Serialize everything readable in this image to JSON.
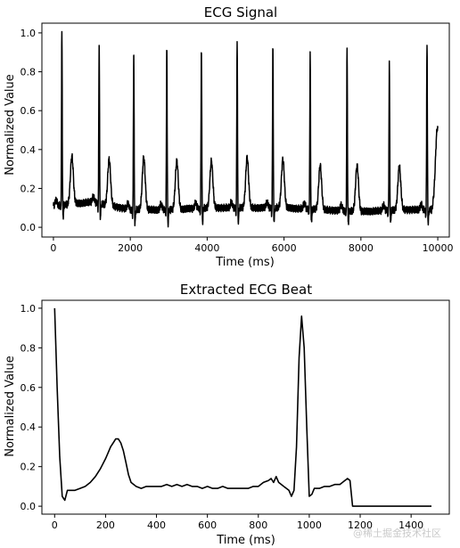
{
  "watermark": "@稀土掘金技术社区",
  "chart_data": [
    {
      "type": "line",
      "title": "ECG Signal",
      "xlabel": "Time (ms)",
      "ylabel": "Normalized Value",
      "xlim": [
        -300,
        10300
      ],
      "ylim": [
        -0.05,
        1.05
      ],
      "xticks": [
        0,
        2000,
        4000,
        6000,
        8000,
        10000
      ],
      "yticks": [
        0.0,
        0.2,
        0.4,
        0.6,
        0.8,
        1.0
      ],
      "xtick_labels": [
        "0",
        "2000",
        "4000",
        "6000",
        "8000",
        "10000"
      ],
      "ytick_labels": [
        "0.0",
        "0.2",
        "0.4",
        "0.6",
        "0.8",
        "1.0"
      ],
      "line_color": "#000000",
      "grid": false,
      "signal_range": [
        0,
        10000
      ],
      "baseline": [
        [
          0,
          0.11
        ],
        [
          1000,
          0.13
        ],
        [
          2000,
          0.09
        ],
        [
          3000,
          0.09
        ],
        [
          4000,
          0.1
        ],
        [
          5000,
          0.1
        ],
        [
          6000,
          0.1
        ],
        [
          7000,
          0.09
        ],
        [
          8000,
          0.08
        ],
        [
          9000,
          0.09
        ],
        [
          10000,
          0.09
        ]
      ],
      "beats": [
        {
          "t": 220,
          "r": 1.0,
          "twave": 0.36
        },
        {
          "t": 1190,
          "r": 0.96,
          "twave": 0.36
        },
        {
          "t": 2090,
          "r": 0.91,
          "twave": 0.36
        },
        {
          "t": 2950,
          "r": 0.94,
          "twave": 0.34
        },
        {
          "t": 3850,
          "r": 0.93,
          "twave": 0.34
        },
        {
          "t": 4780,
          "r": 0.96,
          "twave": 0.36
        },
        {
          "t": 5710,
          "r": 0.95,
          "twave": 0.35
        },
        {
          "t": 6680,
          "r": 0.89,
          "twave": 0.32
        },
        {
          "t": 7640,
          "r": 0.91,
          "twave": 0.32
        },
        {
          "t": 8740,
          "r": 0.84,
          "twave": 0.31
        },
        {
          "t": 9720,
          "r": 0.95,
          "twave": 0.32
        }
      ],
      "end_value": 0.3
    },
    {
      "type": "line",
      "title": "Extracted ECG Beat",
      "xlabel": "Time (ms)",
      "ylabel": "Normalized Value",
      "xlim": [
        -50,
        1550
      ],
      "ylim": [
        -0.04,
        1.04
      ],
      "xticks": [
        0,
        200,
        400,
        600,
        800,
        1000,
        1200,
        1400
      ],
      "yticks": [
        0.0,
        0.2,
        0.4,
        0.6,
        0.8,
        1.0
      ],
      "xtick_labels": [
        "0",
        "200",
        "400",
        "600",
        "800",
        "1000",
        "1200",
        "1400"
      ],
      "ytick_labels": [
        "0.0",
        "0.2",
        "0.4",
        "0.6",
        "0.8",
        "1.0"
      ],
      "line_color": "#000000",
      "grid": false,
      "x": [
        0,
        10,
        20,
        30,
        40,
        50,
        60,
        80,
        100,
        120,
        140,
        160,
        180,
        200,
        210,
        220,
        230,
        240,
        250,
        260,
        270,
        280,
        290,
        300,
        320,
        340,
        360,
        380,
        400,
        420,
        440,
        460,
        480,
        500,
        520,
        540,
        560,
        580,
        600,
        620,
        640,
        660,
        680,
        700,
        720,
        740,
        760,
        780,
        800,
        820,
        840,
        850,
        860,
        870,
        880,
        900,
        920,
        930,
        940,
        950,
        960,
        970,
        980,
        990,
        1000,
        1010,
        1020,
        1040,
        1060,
        1080,
        1100,
        1120,
        1140,
        1150,
        1160,
        1170,
        1200,
        1300,
        1400,
        1480
      ],
      "y": [
        1.0,
        0.6,
        0.25,
        0.05,
        0.03,
        0.08,
        0.08,
        0.08,
        0.09,
        0.1,
        0.12,
        0.15,
        0.19,
        0.24,
        0.27,
        0.3,
        0.32,
        0.34,
        0.34,
        0.32,
        0.28,
        0.22,
        0.16,
        0.12,
        0.1,
        0.09,
        0.1,
        0.1,
        0.1,
        0.1,
        0.11,
        0.1,
        0.11,
        0.1,
        0.11,
        0.1,
        0.1,
        0.09,
        0.1,
        0.09,
        0.09,
        0.1,
        0.09,
        0.09,
        0.09,
        0.09,
        0.09,
        0.1,
        0.1,
        0.12,
        0.13,
        0.14,
        0.12,
        0.15,
        0.12,
        0.1,
        0.08,
        0.05,
        0.08,
        0.3,
        0.75,
        0.96,
        0.8,
        0.4,
        0.05,
        0.06,
        0.09,
        0.09,
        0.1,
        0.1,
        0.11,
        0.11,
        0.13,
        0.14,
        0.13,
        0.0,
        0.0,
        0.0,
        0.0,
        0.0
      ]
    }
  ]
}
